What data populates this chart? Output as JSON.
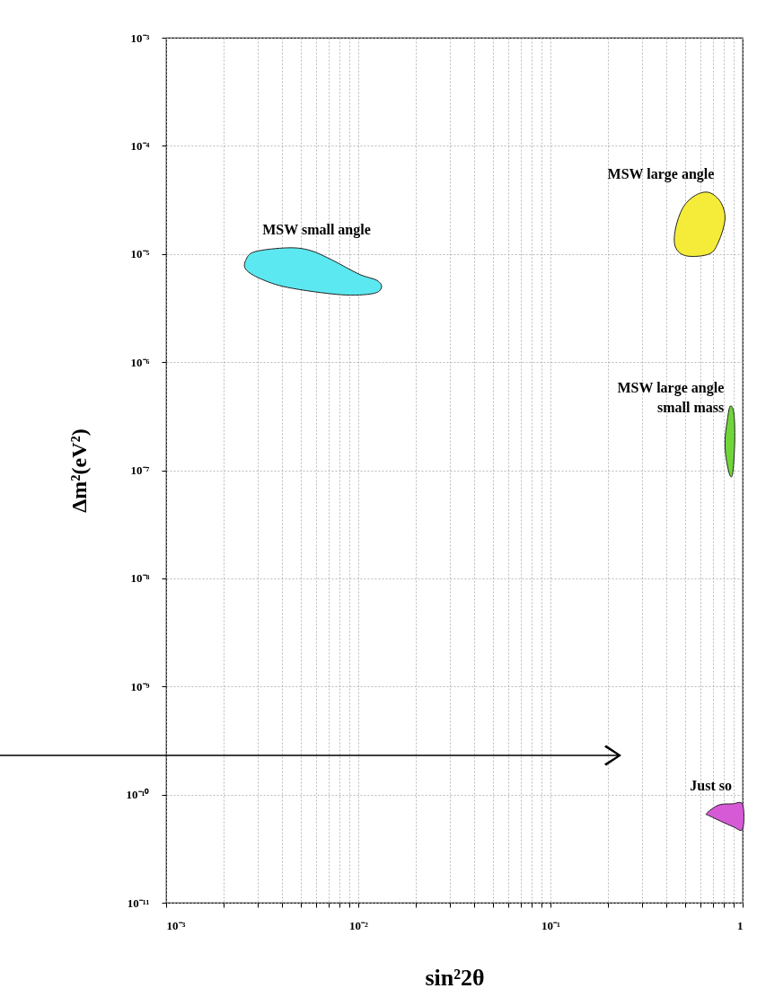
{
  "chart_data": {
    "type": "area",
    "xlabel": "sin²2θ",
    "ylabel": "Δm²(eV²)",
    "log": "xy",
    "grid": true,
    "marker": "none",
    "xlim": [
      0.001,
      1
    ],
    "ylim": [
      1e-11,
      0.001
    ],
    "xticks": [
      {
        "value": 0.001,
        "label": "10⁻³"
      },
      {
        "value": 0.002,
        "label": null
      },
      {
        "value": 0.003,
        "label": null
      },
      {
        "value": 0.004,
        "label": null
      },
      {
        "value": 0.005,
        "label": null
      },
      {
        "value": 0.006,
        "label": null
      },
      {
        "value": 0.007,
        "label": null
      },
      {
        "value": 0.008,
        "label": null
      },
      {
        "value": 0.009,
        "label": null
      },
      {
        "value": 0.01,
        "label": "10⁻²"
      },
      {
        "value": 0.02,
        "label": null
      },
      {
        "value": 0.03,
        "label": null
      },
      {
        "value": 0.04,
        "label": null
      },
      {
        "value": 0.05,
        "label": null
      },
      {
        "value": 0.06,
        "label": null
      },
      {
        "value": 0.07,
        "label": null
      },
      {
        "value": 0.08,
        "label": null
      },
      {
        "value": 0.09,
        "label": null
      },
      {
        "value": 0.1,
        "label": "10⁻¹"
      },
      {
        "value": 0.2,
        "label": null
      },
      {
        "value": 0.3,
        "label": null
      },
      {
        "value": 0.4,
        "label": null
      },
      {
        "value": 0.5,
        "label": null
      },
      {
        "value": 0.6,
        "label": null
      },
      {
        "value": 0.7,
        "label": null
      },
      {
        "value": 0.8,
        "label": null
      },
      {
        "value": 0.9,
        "label": null
      },
      1
    ],
    "yticks": [
      {
        "value": 1e-11,
        "label": "10⁻¹¹"
      },
      {
        "value": 1e-10,
        "label": "10⁻¹⁰"
      },
      {
        "value": 1e-09,
        "label": "10⁻⁹"
      },
      {
        "value": 1e-08,
        "label": "10⁻⁸"
      },
      {
        "value": 1e-07,
        "label": "10⁻⁷"
      },
      {
        "value": 1e-06,
        "label": "10⁻⁶"
      },
      {
        "value": 1e-05,
        "label": "10⁻⁵"
      },
      {
        "value": 0.0001,
        "label": "10⁻⁴"
      },
      {
        "value": 0.001,
        "label": "10⁻³"
      }
    ],
    "series": [
      {
        "name": "MSW small angle",
        "color": "#5ce8f0",
        "x": [
          0.0026,
          0.0029,
          0.0043,
          0.0056,
          0.0073,
          0.0101,
          0.0125,
          0.0132,
          0.0119,
          0.0081,
          0.0043,
          0.0031,
          0.0026
        ],
        "values": [
          8.8e-06,
          1.05e-05,
          1.14e-05,
          1.08e-05,
          8.8e-06,
          6.5e-06,
          5.7e-06,
          4.9e-06,
          4.3e-06,
          4.2e-06,
          4.9e-06,
          5.9e-06,
          7.2e-06
        ]
      },
      {
        "name": "MSW large angle",
        "color": "#f5ec3a",
        "x": [
          0.447,
          0.49,
          0.57,
          0.67,
          0.77,
          0.81,
          0.75,
          0.67,
          0.51,
          0.447
        ],
        "values": [
          1.7e-05,
          2.7e-05,
          3.5e-05,
          3.7e-05,
          3e-05,
          2.1e-05,
          1.3e-05,
          1e-05,
          9.6e-06,
          1.16e-05
        ]
      },
      {
        "name": "MSW large angle\nsmall mass",
        "color": "#6fd63a",
        "x": [
          0.83,
          0.86,
          0.9,
          0.91,
          0.89,
          0.86,
          0.82,
          0.81
        ],
        "values": [
          2.8e-07,
          3.9e-07,
          3.4e-07,
          1.9e-07,
          9.7e-08,
          8.9e-08,
          1.3e-07,
          1.9e-07
        ]
      },
      {
        "name": "Just so",
        "color": "#d65ad6",
        "x": [
          0.65,
          0.75,
          0.88,
          1,
          1,
          0.88,
          0.68
        ],
        "values": [
          6.7e-11,
          8e-11,
          8.2e-11,
          8.1e-11,
          4.8e-11,
          5.1e-11,
          6.3e-11
        ]
      }
    ]
  }
}
